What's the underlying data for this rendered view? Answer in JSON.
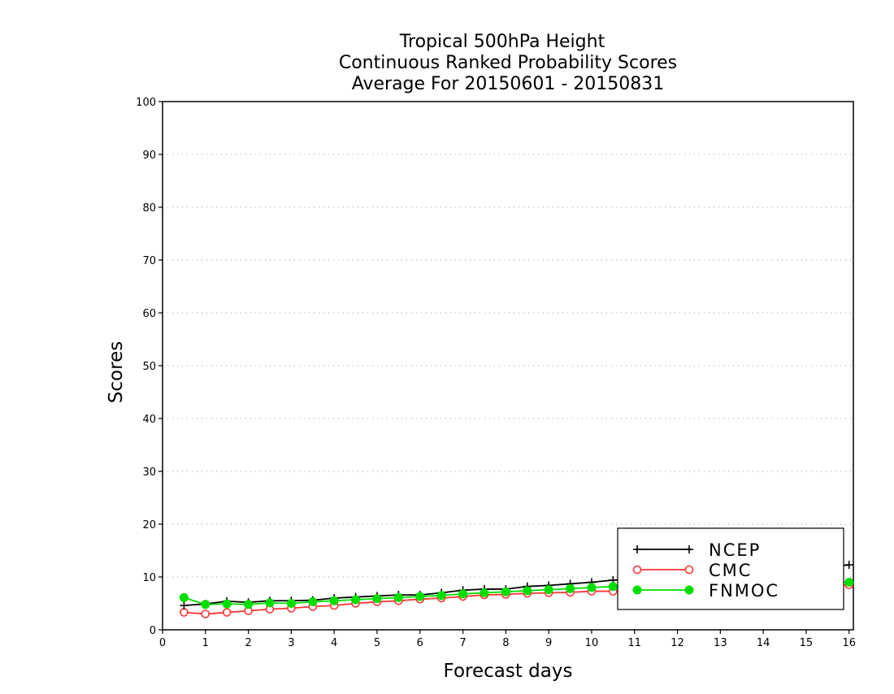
{
  "chart_data": {
    "type": "line",
    "title": [
      "Tropical 500hPa Height",
      "Continuous Ranked Probability Scores",
      "Average For 20150601 - 20150831"
    ],
    "xlabel": "Forecast days",
    "ylabel": "Scores",
    "xlim": [
      0,
      16.1
    ],
    "ylim": [
      0,
      100
    ],
    "xticks": [
      0,
      1,
      2,
      3,
      4,
      5,
      6,
      7,
      8,
      9,
      10,
      11,
      12,
      13,
      14,
      15,
      16
    ],
    "yticks": [
      0,
      10,
      20,
      30,
      40,
      50,
      60,
      70,
      80,
      90,
      100
    ],
    "grid": "horizontal dotted",
    "legend_position": "bottom-right",
    "x": [
      0.5,
      1,
      1.5,
      2,
      2.5,
      3,
      3.5,
      4,
      4.5,
      5,
      5.5,
      6,
      6.5,
      7,
      7.5,
      8,
      8.5,
      9,
      9.5,
      10,
      10.5,
      11,
      11.5,
      12,
      12.5,
      13,
      13.5,
      14,
      14.5,
      15,
      15.5,
      16
    ],
    "series": [
      {
        "name": "NCEP",
        "color": "#000000",
        "marker": "plus",
        "values": [
          4.6,
          4.9,
          5.4,
          5.2,
          5.5,
          5.5,
          5.6,
          6.0,
          6.2,
          6.4,
          6.6,
          6.6,
          7.0,
          7.5,
          7.7,
          7.7,
          8.2,
          8.4,
          8.7,
          9.0,
          9.4,
          9.6,
          9.8,
          10.0,
          10.3,
          10.5,
          10.8,
          11.0,
          11.3,
          11.5,
          11.9,
          12.3
        ]
      },
      {
        "name": "CMC",
        "color": "#ff3333",
        "marker": "open-circle",
        "values": [
          3.3,
          3.0,
          3.3,
          3.6,
          3.9,
          4.1,
          4.4,
          4.6,
          5.0,
          5.3,
          5.5,
          5.8,
          6.0,
          6.3,
          6.6,
          6.7,
          6.9,
          7.0,
          7.1,
          7.3,
          7.3,
          7.4,
          7.5,
          7.6,
          7.7,
          7.8,
          7.9,
          8.0,
          8.2,
          8.3,
          8.5,
          8.5
        ]
      },
      {
        "name": "FNMOC",
        "color": "#00dd00",
        "marker": "filled-circle",
        "values": [
          6.1,
          4.8,
          4.9,
          4.8,
          5.1,
          5.0,
          5.3,
          5.5,
          5.7,
          5.9,
          6.1,
          6.3,
          6.5,
          6.8,
          7.0,
          7.2,
          7.4,
          7.6,
          7.8,
          8.0,
          8.2,
          8.3,
          8.4,
          8.5,
          8.6,
          8.6,
          8.7,
          8.7,
          8.8,
          8.8,
          8.9,
          9.0
        ]
      }
    ]
  }
}
